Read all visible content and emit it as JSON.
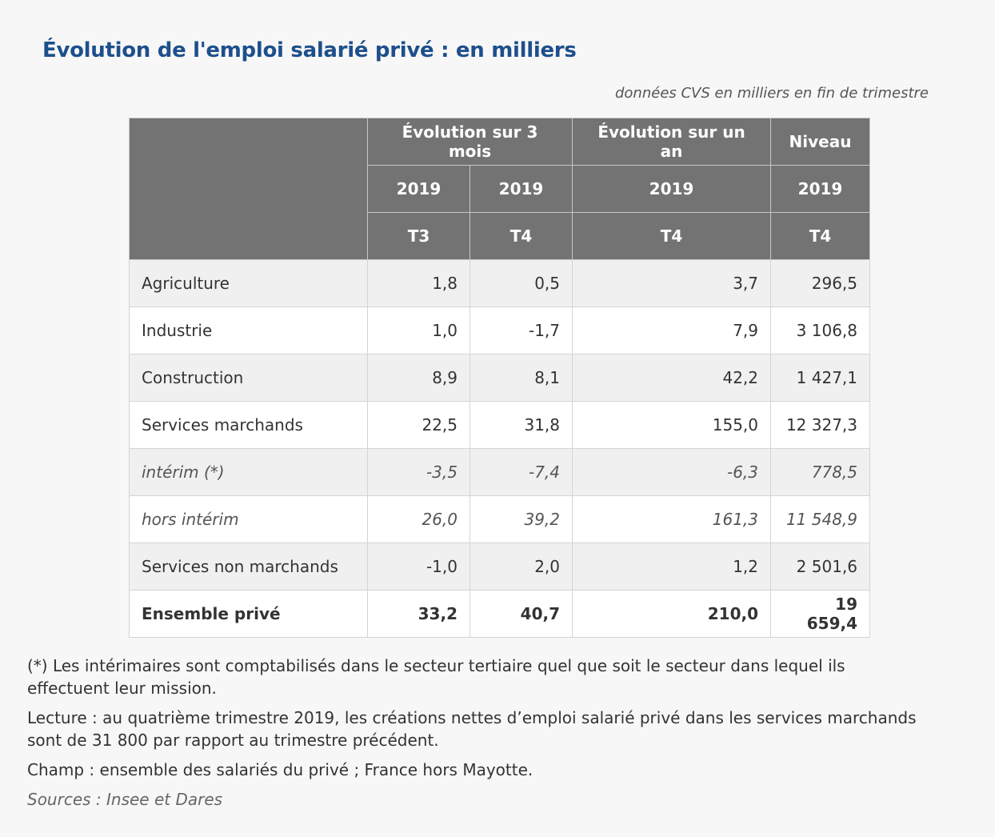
{
  "title": "Évolution de l'emploi salarié privé : en milliers",
  "subtitle": "données CVS en milliers en fin de trimestre",
  "table": {
    "header_groups": [
      "Évolution sur 3 mois",
      "Évolution sur un an",
      "Niveau"
    ],
    "years": [
      "2019",
      "2019",
      "2019",
      "2019"
    ],
    "quarters": [
      "T3",
      "T4",
      "T4",
      "T4"
    ],
    "rows": [
      {
        "label": "Agriculture",
        "values": [
          "1,8",
          "0,5",
          "3,7",
          "296,5"
        ]
      },
      {
        "label": "Industrie",
        "values": [
          "1,0",
          "-1,7",
          "7,9",
          "3 106,8"
        ]
      },
      {
        "label": "Construction",
        "values": [
          "8,9",
          "8,1",
          "42,2",
          "1 427,1"
        ]
      },
      {
        "label": "Services marchands",
        "values": [
          "22,5",
          "31,8",
          "155,0",
          "12 327,3"
        ]
      },
      {
        "label": "intérim (*)",
        "values": [
          "-3,5",
          "-7,4",
          "-6,3",
          "778,5"
        ]
      },
      {
        "label": "hors intérim",
        "values": [
          "26,0",
          "39,2",
          "161,3",
          "11 548,9"
        ]
      },
      {
        "label": "Services non marchands",
        "values": [
          "-1,0",
          "2,0",
          "1,2",
          "2 501,6"
        ]
      },
      {
        "label": "Ensemble privé",
        "values": [
          "33,2",
          "40,7",
          "210,0",
          "19 659,4"
        ]
      }
    ]
  },
  "notes": {
    "footnote": "(*) Les intérimaires sont comptabilisés dans le secteur tertiaire quel que soit le secteur dans lequel ils effectuent leur mission.",
    "lecture": "Lecture : au quatrième trimestre 2019, les créations nettes d’emploi salarié privé dans les services marchands sont de 31 800 par rapport au trimestre précédent.",
    "champ": "Champ : ensemble des salariés du privé ; France hors Mayotte.",
    "sources": "Sources : Insee et Dares"
  }
}
